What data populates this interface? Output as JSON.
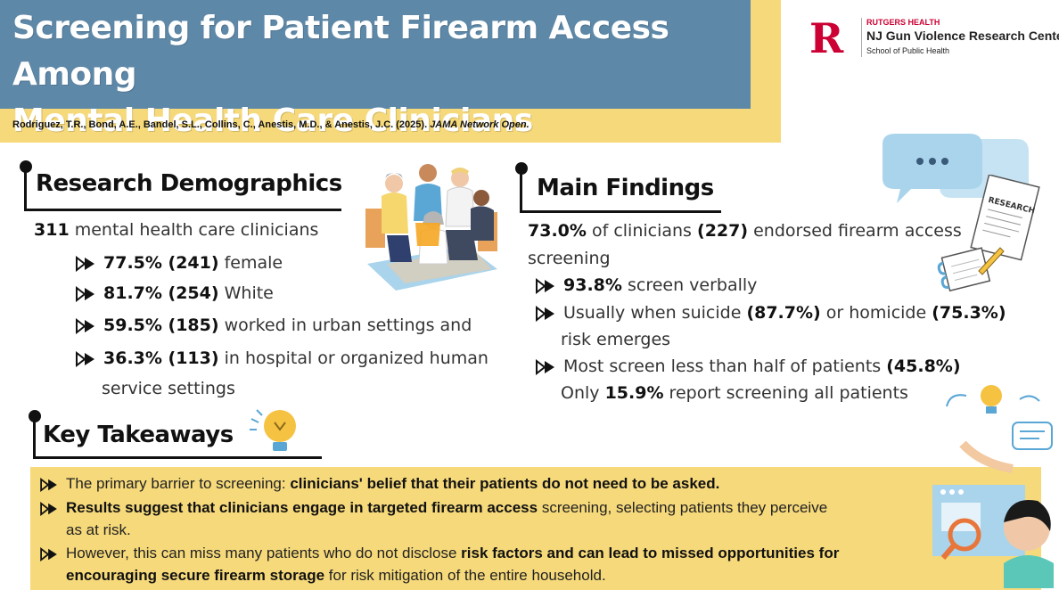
{
  "header": {
    "title_line1": "Screening for Patient Firearm Access Among",
    "title_line2": "Mental Health Care Clinicians",
    "citation_authors": "Rodriguez, T.R., Bond, A.E., Bandel, S.L., Collins, C., Anestis, M.D., & Anestis, J.C. (2025).",
    "citation_journal": "JAMA Network Open."
  },
  "logo": {
    "mark": "R",
    "line1": "RUTGERS HEALTH",
    "line2": "NJ Gun Violence Research Center",
    "line3": "School of Public Health"
  },
  "demographics": {
    "heading": "Research Demographics",
    "intro_num": "311",
    "intro_text": "mental health care clinicians",
    "items": [
      {
        "bold": "77.5% (241)",
        "text": "female"
      },
      {
        "bold": "81.7% (254)",
        "text": "White"
      },
      {
        "bold": "59.5% (185)",
        "text": "worked in urban settings and"
      },
      {
        "bold": "36.3% (113)",
        "text": "in hospital or organized human",
        "cont": "service settings"
      }
    ]
  },
  "findings": {
    "heading": "Main Findings",
    "intro_b1": "73.0%",
    "intro_t1": "of clinicians",
    "intro_b2": "(227)",
    "intro_t2": "endorsed firearm access",
    "intro_t3": "screening",
    "item1_bold": "93.8%",
    "item1_text": "screen verbally",
    "item2_t1": "Usually when suicide",
    "item2_b1": "(87.7%)",
    "item2_t2": "or homicide",
    "item2_b2": "(75.3%)",
    "item2_cont": "risk emerges",
    "item3_text": "Most screen less than half of patients",
    "item3_bold": "(45.8%)",
    "item3_c1": "Only",
    "item3_cb": "15.9%",
    "item3_c2": "report screening all patients",
    "research_label": "RESEARCH"
  },
  "takeaways": {
    "heading": "Key Takeaways",
    "t1_text": "The primary barrier to screening:",
    "t1_bold": "clinicians' belief that their patients do not need to be asked.",
    "t2_bold": "Results suggest that clinicians engage in targeted firearm access",
    "t2_text": "screening, selecting patients they perceive",
    "t2_cont": "as at risk.",
    "t3_text": "However, this can miss many patients who do not disclose",
    "t3_bold": "risk factors and can lead to missed opportunities for",
    "t3_cont_bold": "encouraging secure firearm storage",
    "t3_cont_text": "for risk mitigation of the entire household."
  },
  "colors": {
    "title_bg": "#5e88a8",
    "accent_yellow": "#f6d97a",
    "brand_red": "#cc0033",
    "illustration_blue": "#a9d4ec"
  },
  "icons": [
    "people-circle-illustration",
    "chat-bubbles-icon",
    "research-paper-icon",
    "notepad-icon",
    "lightbulb-icon",
    "person-magnifier-illustration",
    "arrow-bullet-icon"
  ]
}
